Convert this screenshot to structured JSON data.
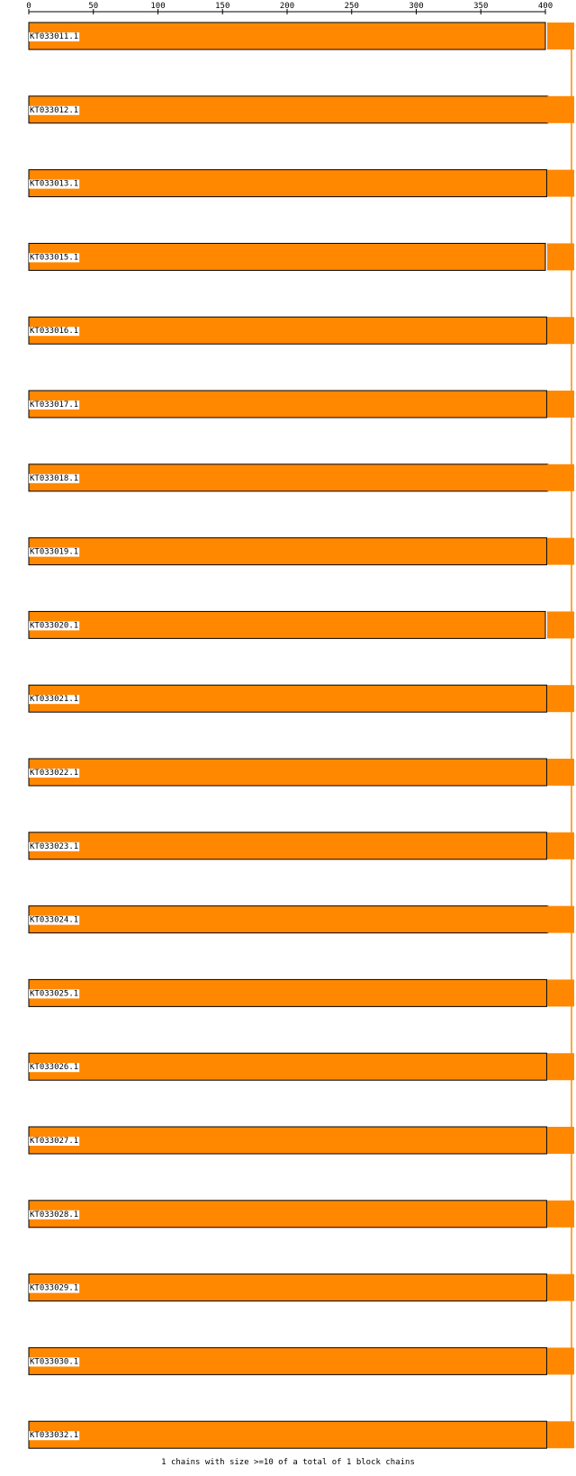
{
  "chart_data": {
    "type": "block-chain-alignment",
    "axis": {
      "ticks": [
        0,
        50,
        100,
        150,
        200,
        250,
        300,
        350,
        400
      ],
      "range": [
        0,
        400
      ]
    },
    "bar_color": "#ff8800",
    "connector_color": "#ff8800",
    "sequences": [
      {
        "name": "KT033011.1",
        "start": 0,
        "end": 400
      },
      {
        "name": "KT033012.1",
        "start": 0,
        "end": 402
      },
      {
        "name": "KT033013.1",
        "start": 0,
        "end": 401
      },
      {
        "name": "KT033015.1",
        "start": 0,
        "end": 400
      },
      {
        "name": "KT033016.1",
        "start": 0,
        "end": 401
      },
      {
        "name": "KT033017.1",
        "start": 0,
        "end": 401
      },
      {
        "name": "KT033018.1",
        "start": 0,
        "end": 402
      },
      {
        "name": "KT033019.1",
        "start": 0,
        "end": 401
      },
      {
        "name": "KT033020.1",
        "start": 0,
        "end": 400
      },
      {
        "name": "KT033021.1",
        "start": 0,
        "end": 401
      },
      {
        "name": "KT033022.1",
        "start": 0,
        "end": 401
      },
      {
        "name": "KT033023.1",
        "start": 0,
        "end": 401
      },
      {
        "name": "KT033024.1",
        "start": 0,
        "end": 402
      },
      {
        "name": "KT033025.1",
        "start": 0,
        "end": 401
      },
      {
        "name": "KT033026.1",
        "start": 0,
        "end": 401
      },
      {
        "name": "KT033027.1",
        "start": 0,
        "end": 401
      },
      {
        "name": "KT033028.1",
        "start": 0,
        "end": 401
      },
      {
        "name": "KT033029.1",
        "start": 0,
        "end": 401
      },
      {
        "name": "KT033030.1",
        "start": 0,
        "end": 401
      },
      {
        "name": "KT033032.1",
        "start": 0,
        "end": 401
      }
    ],
    "footer": "1 chains with size >=10 of a total of 1 block chains"
  }
}
